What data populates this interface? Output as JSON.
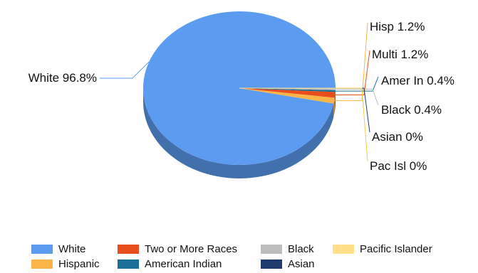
{
  "chart_data": {
    "type": "pie",
    "style": "3d",
    "legend_position": "bottom",
    "slices": [
      {
        "name": "White",
        "label": "White 96.8%",
        "value": 96.8,
        "color": "#5b9cf0"
      },
      {
        "name": "Hispanic",
        "label": "Hisp 1.2%",
        "value": 1.2,
        "color": "#f9b44a"
      },
      {
        "name": "Two or More Races",
        "label": "Multi 1.2%",
        "value": 1.2,
        "color": "#e84d1c"
      },
      {
        "name": "American Indian",
        "label": "Amer In 0.4%",
        "value": 0.4,
        "color": "#1b6f96"
      },
      {
        "name": "Black",
        "label": "Black 0.4%",
        "value": 0.4,
        "color": "#bdbdbd"
      },
      {
        "name": "Asian",
        "label": "Asian 0%",
        "value": 0.0,
        "color": "#1f3b6e"
      },
      {
        "name": "Pacific Islander",
        "label": "Pac Isl 0%",
        "value": 0.0,
        "color": "#ffe08a"
      }
    ],
    "legend_order": [
      "White",
      "Two or More Races",
      "Black",
      "Pacific Islander",
      "Hispanic",
      "American Indian",
      "Asian"
    ]
  }
}
